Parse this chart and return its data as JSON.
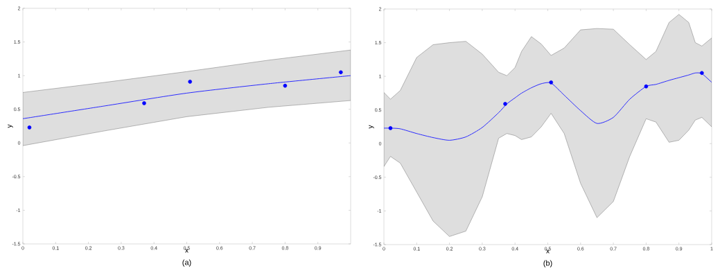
{
  "chart_data": [
    {
      "type": "line",
      "xlabel": "x",
      "ylabel": "y",
      "annotations": [
        "(a)"
      ],
      "xlim": [
        0,
        1
      ],
      "ylim": [
        -1.5,
        2
      ],
      "xticks": [
        0,
        0.1,
        0.2,
        0.3,
        0.4,
        0.5,
        0.6,
        0.7,
        0.8,
        0.9
      ],
      "yticks": [
        -1.5,
        -1,
        -0.5,
        0,
        0.5,
        1,
        1.5,
        2
      ],
      "series": [
        {
          "color": "#2a2aff",
          "x": [
            0,
            0.25,
            0.5,
            0.75,
            1
          ],
          "values": [
            0.36,
            0.55,
            0.74,
            0.88,
            1.0
          ],
          "lower": [
            -0.04,
            0.18,
            0.39,
            0.53,
            0.63
          ],
          "upper": [
            0.75,
            0.9,
            1.06,
            1.23,
            1.38
          ]
        },
        {
          "type": "scatter",
          "color": "#0000ff",
          "x": [
            0.02,
            0.37,
            0.51,
            0.8,
            0.97
          ],
          "values": [
            0.23,
            0.59,
            0.91,
            0.85,
            1.05
          ]
        }
      ]
    },
    {
      "type": "line",
      "xlabel": "x",
      "ylabel": "y",
      "annotations": [
        "(b)"
      ],
      "xlim": [
        0,
        1
      ],
      "ylim": [
        -1.5,
        2
      ],
      "xticks": [
        0,
        0.1,
        0.2,
        0.3,
        0.4,
        0.5,
        0.6,
        0.7,
        0.8,
        0.9,
        1
      ],
      "yticks": [
        -1.5,
        -1,
        -0.5,
        0,
        0.5,
        1,
        1.5,
        2
      ],
      "series": [
        {
          "color": "#2a2aff",
          "x": [
            0,
            0.02,
            0.05,
            0.1,
            0.15,
            0.2,
            0.25,
            0.3,
            0.35,
            0.375,
            0.4,
            0.42,
            0.45,
            0.48,
            0.51,
            0.55,
            0.6,
            0.65,
            0.7,
            0.75,
            0.8,
            0.83,
            0.87,
            0.9,
            0.93,
            0.95,
            0.97,
            1.0
          ],
          "values": [
            0.23,
            0.23,
            0.22,
            0.15,
            0.09,
            0.05,
            0.1,
            0.24,
            0.46,
            0.59,
            0.68,
            0.75,
            0.83,
            0.89,
            0.9,
            0.72,
            0.49,
            0.3,
            0.39,
            0.66,
            0.85,
            0.88,
            0.94,
            0.98,
            1.02,
            1.05,
            1.04,
            0.91
          ],
          "lower": [
            -0.34,
            -0.19,
            -0.29,
            -0.72,
            -1.15,
            -1.38,
            -1.3,
            -0.79,
            0.08,
            0.15,
            0.12,
            0.06,
            0.1,
            0.25,
            0.45,
            0.15,
            -0.59,
            -1.1,
            -0.86,
            -0.19,
            0.37,
            0.32,
            0.02,
            0.05,
            0.2,
            0.35,
            0.39,
            0.25
          ],
          "upper": [
            0.76,
            0.66,
            0.79,
            1.28,
            1.47,
            1.5,
            1.52,
            1.33,
            1.06,
            1.01,
            1.13,
            1.37,
            1.59,
            1.48,
            1.31,
            1.42,
            1.69,
            1.71,
            1.7,
            1.47,
            1.25,
            1.37,
            1.8,
            1.92,
            1.8,
            1.5,
            1.45,
            1.57
          ]
        },
        {
          "type": "scatter",
          "color": "#0000ff",
          "x": [
            0.02,
            0.37,
            0.51,
            0.8,
            0.97
          ],
          "values": [
            0.23,
            0.59,
            0.91,
            0.85,
            1.05
          ]
        }
      ]
    }
  ]
}
